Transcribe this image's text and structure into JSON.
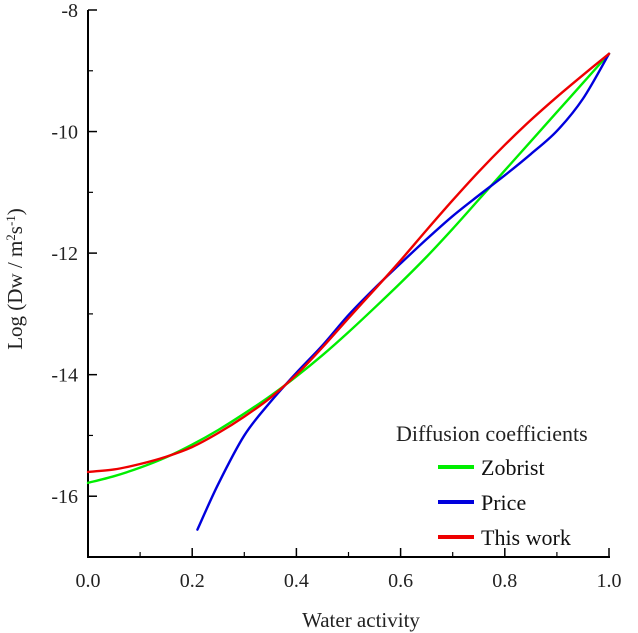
{
  "chart_data": {
    "type": "line",
    "xlabel": "Water activity",
    "ylabel": {
      "main": "Log (Dw / m",
      "sup1": "2",
      "mid": "s",
      "sup2": "-1",
      "end": ")"
    },
    "xlim": [
      0.0,
      1.0
    ],
    "ylim": [
      -17,
      -8
    ],
    "x_ticks": [
      0.0,
      0.2,
      0.4,
      0.6,
      0.8,
      1.0
    ],
    "x_tick_labels": [
      "0.0",
      "0.2",
      "0.4",
      "0.6",
      "0.8",
      "1.0"
    ],
    "y_ticks": [
      -16,
      -14,
      -12,
      -10,
      -8
    ],
    "y_tick_labels": [
      "-16",
      "-14",
      "-12",
      "-10",
      "-8"
    ],
    "grid": false,
    "legend": {
      "title": "Diffusion coefficients",
      "position": "bottom-right"
    },
    "series": [
      {
        "name": "Zobrist",
        "color": "#00ee00",
        "x": [
          0.0,
          0.05,
          0.1,
          0.15,
          0.2,
          0.25,
          0.3,
          0.35,
          0.4,
          0.45,
          0.5,
          0.55,
          0.6,
          0.65,
          0.7,
          0.75,
          0.8,
          0.85,
          0.9,
          0.95,
          1.0
        ],
        "y": [
          -15.78,
          -15.67,
          -15.53,
          -15.36,
          -15.15,
          -14.91,
          -14.64,
          -14.35,
          -14.03,
          -13.68,
          -13.3,
          -12.9,
          -12.49,
          -12.06,
          -11.6,
          -11.12,
          -10.64,
          -10.16,
          -9.68,
          -9.2,
          -8.72
        ]
      },
      {
        "name": "Price",
        "color": "#0000dd",
        "x": [
          0.21,
          0.25,
          0.3,
          0.35,
          0.4,
          0.45,
          0.5,
          0.55,
          0.6,
          0.65,
          0.7,
          0.75,
          0.8,
          0.85,
          0.9,
          0.95,
          1.0
        ],
        "y": [
          -16.55,
          -15.8,
          -15.0,
          -14.45,
          -13.97,
          -13.52,
          -13.02,
          -12.58,
          -12.17,
          -11.77,
          -11.39,
          -11.05,
          -10.72,
          -10.37,
          -9.99,
          -9.46,
          -8.72
        ]
      },
      {
        "name": "This work",
        "color": "#ee0000",
        "x": [
          0.0,
          0.05,
          0.1,
          0.15,
          0.2,
          0.25,
          0.3,
          0.35,
          0.4,
          0.45,
          0.5,
          0.55,
          0.6,
          0.65,
          0.7,
          0.75,
          0.8,
          0.85,
          0.9,
          0.95,
          1.0
        ],
        "y": [
          -15.6,
          -15.56,
          -15.47,
          -15.35,
          -15.19,
          -14.96,
          -14.69,
          -14.38,
          -14.0,
          -13.55,
          -13.07,
          -12.6,
          -12.12,
          -11.62,
          -11.13,
          -10.66,
          -10.22,
          -9.81,
          -9.43,
          -9.07,
          -8.72
        ]
      }
    ]
  }
}
